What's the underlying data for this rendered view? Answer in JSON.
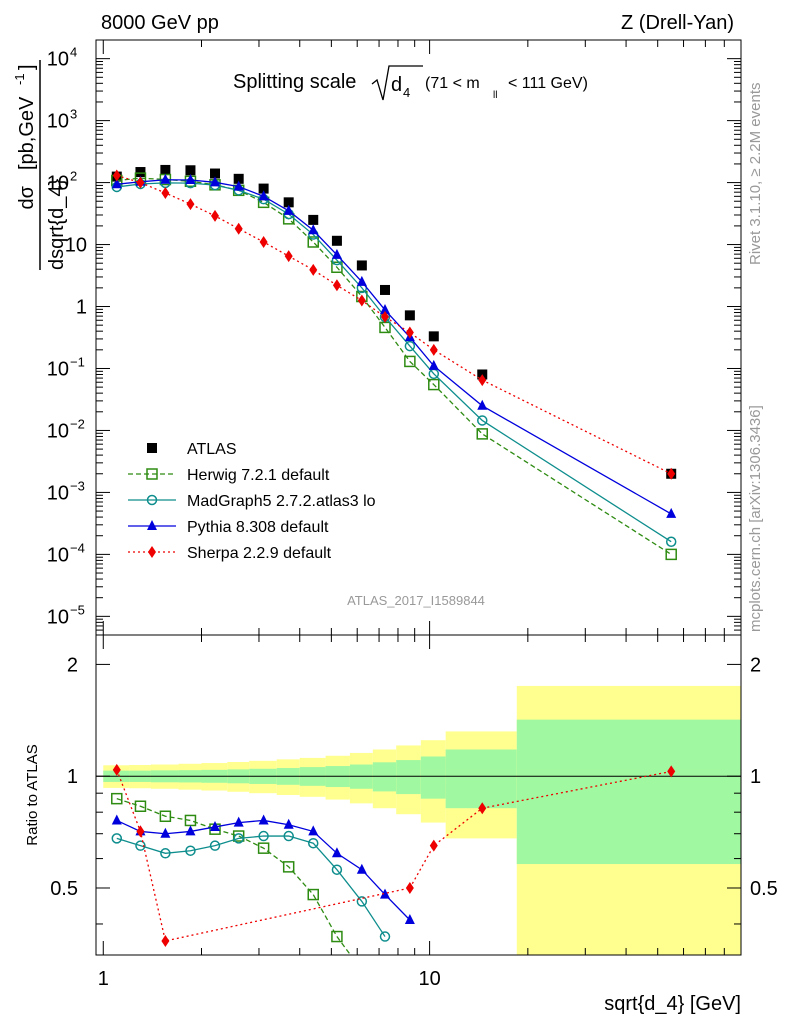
{
  "header": {
    "left": "8000 GeV pp",
    "right": "Z (Drell-Yan)"
  },
  "side_text": {
    "rivet": "Rivet 3.1.10, ≥ 2.2M events",
    "mcplots": "mcplots.cern.ch [arXiv:1306.3436]"
  },
  "watermark": "ATLAS_2017_I1589844",
  "colors": {
    "ATLAS": "#000000",
    "Herwig": "#2e8b12",
    "MadGraph": "#0e8d8d",
    "Pythia": "#0000dd",
    "Sherpa": "#ee0000",
    "band_inner": "#a0f8a0",
    "band_outer": "#ffff90"
  },
  "chart_data": [
    {
      "type": "scatter",
      "panel": "main",
      "title": "Splitting scale",
      "title_sqrt": "d",
      "title_sub": "4",
      "title_cut": "(71 < m",
      "title_cut_sub": "ll",
      "title_cut_end": "< 111 GeV)",
      "ylabel_num": "dσ",
      "ylabel_den": "dsqrt{d_4}",
      "ylabel_units": "[pb,GeV",
      "ylabel_units_sup": "-1",
      "ylabel_units_end": "]",
      "xscale": "log",
      "yscale": "log",
      "xlim": [
        0.95,
        90
      ],
      "ylim": [
        5e-06,
        20000
      ],
      "ytick_labels": [
        {
          "v": 10000,
          "base": "10",
          "exp": "4"
        },
        {
          "v": 1000,
          "base": "10",
          "exp": "3"
        },
        {
          "v": 100,
          "base": "10",
          "exp": "2"
        },
        {
          "v": 10,
          "base": "10",
          "exp": ""
        },
        {
          "v": 1,
          "base": "1",
          "exp": ""
        },
        {
          "v": 0.1,
          "base": "10",
          "exp": "−1"
        },
        {
          "v": 0.01,
          "base": "10",
          "exp": "−2"
        },
        {
          "v": 0.001,
          "base": "10",
          "exp": "−3"
        },
        {
          "v": 0.0001,
          "base": "10",
          "exp": "−4"
        },
        {
          "v": 1e-05,
          "base": "10",
          "exp": "−5"
        }
      ],
      "legend_position": "lower-left",
      "series": [
        {
          "name": "ATLAS",
          "marker": "square",
          "x": [
            1.1,
            1.3,
            1.55,
            1.85,
            2.2,
            2.6,
            3.1,
            3.7,
            4.4,
            5.2,
            6.2,
            7.3,
            8.7,
            10.3,
            14.5,
            55
          ],
          "y": [
            125,
            148,
            160,
            158,
            140,
            115,
            80,
            48,
            25,
            11.5,
            4.6,
            1.85,
            0.72,
            0.33,
            0.08,
            0.002
          ]
        },
        {
          "name": "Herwig 7.2.1 default",
          "marker": "open-square",
          "line": "dashed",
          "x": [
            1.1,
            1.3,
            1.55,
            1.85,
            2.2,
            2.6,
            3.1,
            3.7,
            4.4,
            5.2,
            6.2,
            7.3,
            8.7,
            10.3,
            14.5,
            55
          ],
          "y": [
            108,
            118,
            112,
            105,
            92,
            75,
            48,
            26,
            11,
            4.3,
            1.45,
            0.46,
            0.13,
            0.055,
            0.0088,
            0.0001
          ]
        },
        {
          "name": "MadGraph5 2.7.2.atlas3 lo",
          "marker": "open-circle",
          "line": "solid",
          "x": [
            1.1,
            1.3,
            1.55,
            1.85,
            2.2,
            2.6,
            3.1,
            3.7,
            4.4,
            5.2,
            6.2,
            7.3,
            8.7,
            10.3,
            14.5,
            55
          ],
          "y": [
            85,
            95,
            99,
            98,
            91,
            75,
            54,
            31,
            14.5,
            5.6,
            2.0,
            0.68,
            0.23,
            0.082,
            0.0145,
            0.00016
          ]
        },
        {
          "name": "Pythia 8.308 default",
          "marker": "triangle",
          "line": "solid",
          "x": [
            1.1,
            1.3,
            1.55,
            1.85,
            2.2,
            2.6,
            3.1,
            3.7,
            4.4,
            5.2,
            6.2,
            7.3,
            8.7,
            10.3,
            14.5,
            55
          ],
          "y": [
            94,
            103,
            111,
            110,
            101,
            86,
            60,
            35,
            17,
            6.8,
            2.5,
            0.88,
            0.32,
            0.11,
            0.025,
            0.00045
          ]
        },
        {
          "name": "Sherpa 2.2.9 default",
          "marker": "diamond",
          "line": "dotted",
          "x": [
            1.1,
            1.3,
            1.55,
            1.85,
            2.2,
            2.6,
            3.1,
            3.7,
            4.4,
            5.2,
            6.2,
            7.3,
            8.7,
            10.3,
            14.5,
            55
          ],
          "y": [
            130,
            100,
            68,
            45,
            29,
            18,
            11,
            6.5,
            3.9,
            2.2,
            1.25,
            0.68,
            0.38,
            0.2,
            0.065,
            0.002
          ]
        }
      ]
    },
    {
      "type": "line",
      "panel": "ratio",
      "ylabel": "Ratio to ATLAS",
      "xlabel": "sqrt{d_4} [GeV]",
      "xscale": "log",
      "xlim": [
        0.95,
        90
      ],
      "ylim": [
        0.33,
        2.4
      ],
      "yticks": [
        0.5,
        1,
        2
      ],
      "ytick_labels": [
        "0.5",
        "1",
        "2"
      ],
      "xticks": [
        1,
        10
      ],
      "xtick_labels": [
        "1",
        "10"
      ],
      "band_edges": [
        1.0,
        1.2,
        1.4,
        1.7,
        2.0,
        2.4,
        2.8,
        3.4,
        4.0,
        4.8,
        5.7,
        6.7,
        7.9,
        9.4,
        11.2,
        18.5,
        90
      ],
      "band_inner": [
        0.035,
        0.035,
        0.037,
        0.038,
        0.04,
        0.043,
        0.047,
        0.052,
        0.058,
        0.065,
        0.075,
        0.09,
        0.105,
        0.13,
        0.18,
        0.42
      ],
      "band_outer": [
        0.07,
        0.072,
        0.075,
        0.08,
        0.085,
        0.092,
        0.1,
        0.11,
        0.12,
        0.135,
        0.155,
        0.18,
        0.21,
        0.25,
        0.32,
        0.75
      ],
      "series": [
        {
          "name": "Herwig 7.2.1 default",
          "x": [
            1.1,
            1.3,
            1.55,
            1.85,
            2.2,
            2.6,
            3.1,
            3.7,
            4.4,
            5.2,
            6.2,
            7.3
          ],
          "y": [
            0.87,
            0.83,
            0.78,
            0.76,
            0.72,
            0.69,
            0.64,
            0.57,
            0.48,
            0.37,
            0.3,
            0.25
          ]
        },
        {
          "name": "MadGraph5 2.7.2.atlas3 lo",
          "x": [
            1.1,
            1.3,
            1.55,
            1.85,
            2.2,
            2.6,
            3.1,
            3.7,
            4.4,
            5.2,
            6.2,
            7.3
          ],
          "y": [
            0.68,
            0.65,
            0.62,
            0.63,
            0.65,
            0.68,
            0.69,
            0.69,
            0.66,
            0.56,
            0.46,
            0.37
          ]
        },
        {
          "name": "Pythia 8.308 default",
          "x": [
            1.1,
            1.3,
            1.55,
            1.85,
            2.2,
            2.6,
            3.1,
            3.7,
            4.4,
            5.2,
            6.2,
            7.3,
            8.7
          ],
          "y": [
            0.76,
            0.71,
            0.7,
            0.71,
            0.73,
            0.75,
            0.76,
            0.74,
            0.71,
            0.62,
            0.56,
            0.48,
            0.41
          ]
        },
        {
          "name": "Sherpa 2.2.9 default",
          "x": [
            1.1,
            1.3,
            1.55,
            8.7,
            10.3,
            14.5,
            55
          ],
          "y": [
            1.04,
            0.71,
            0.36,
            0.5,
            0.65,
            0.82,
            1.03
          ]
        }
      ]
    }
  ]
}
